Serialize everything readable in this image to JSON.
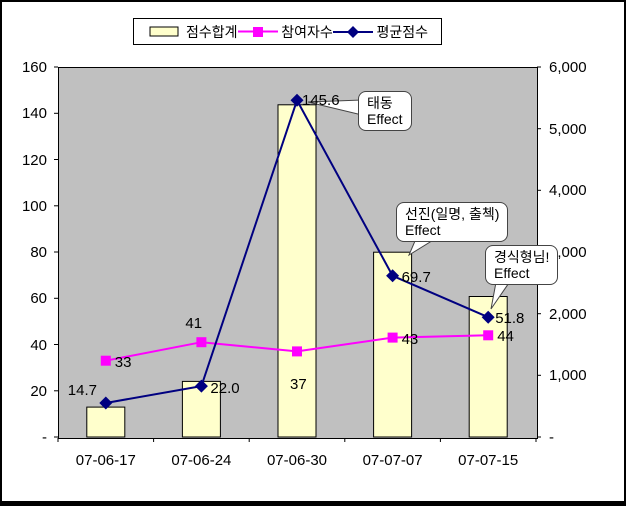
{
  "legend": {
    "items": [
      {
        "label": "점수합계",
        "marker": "bar-swatch"
      },
      {
        "label": "참여자수",
        "marker": "square-on-line"
      },
      {
        "label": "평균점수",
        "marker": "diamond-on-line"
      }
    ]
  },
  "chart_data": {
    "type": "bar",
    "subtype": "combo-bar-line",
    "categories": [
      "07-06-17",
      "07-06-24",
      "07-06-30",
      "07-07-07",
      "07-07-15"
    ],
    "series": [
      {
        "name": "점수합계",
        "type": "bar",
        "axis": "right",
        "color": "#FFFFCC",
        "border_color": "#000000",
        "values": [
          485,
          902,
          5387,
          2997,
          2279
        ],
        "labels": [
          "",
          "",
          "",
          "",
          ""
        ]
      },
      {
        "name": "참여자수",
        "type": "line",
        "marker": "square",
        "axis": "left",
        "color": "#FF00FF",
        "values": [
          33,
          41,
          37,
          43,
          44
        ],
        "labels": [
          "33",
          "41",
          "37",
          "43",
          "44"
        ]
      },
      {
        "name": "평균점수",
        "type": "line",
        "marker": "diamond",
        "axis": "left",
        "color": "#000080",
        "values": [
          14.7,
          22.0,
          145.6,
          69.7,
          51.8
        ],
        "labels": [
          "14.7",
          "22.0",
          "145.6",
          "69.7",
          "51.8"
        ]
      }
    ],
    "left_axis": {
      "min": 0,
      "max": 160,
      "tick_labels": [
        "160",
        "140",
        "120",
        "100",
        "80",
        "60",
        "40",
        "20",
        "-"
      ],
      "tick_values": [
        160,
        140,
        120,
        100,
        80,
        60,
        40,
        20,
        0
      ]
    },
    "right_axis": {
      "min": 0,
      "max": 6000,
      "tick_labels": [
        "6,000",
        "5,000",
        "4,000",
        "3,000",
        "2,000",
        "1,000",
        "-"
      ],
      "tick_values": [
        6000,
        5000,
        4000,
        3000,
        2000,
        1000,
        0
      ]
    },
    "annotations": [
      {
        "lines": [
          "태동",
          "Effect"
        ]
      },
      {
        "lines": [
          "선진(일명, 출첵)",
          "Effect"
        ]
      },
      {
        "lines": [
          "경식형님!",
          "Effect"
        ]
      }
    ],
    "plot_background": "#C0C0C0",
    "grid": false,
    "legend_position": "top"
  }
}
